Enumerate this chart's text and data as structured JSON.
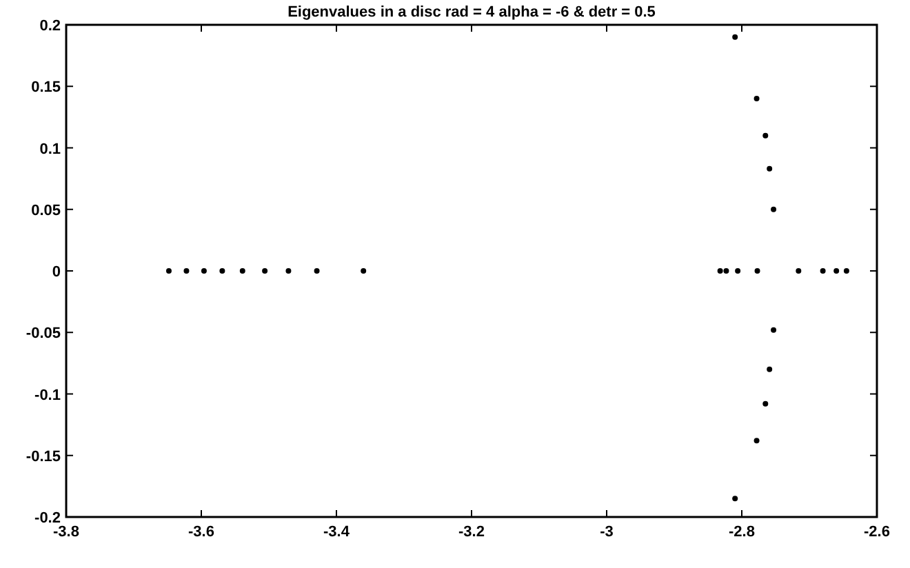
{
  "chart_data": {
    "type": "scatter",
    "title": "Eigenvalues in a disc rad = 4 alpha = -6 & detr = 0.5",
    "x": [
      -3.648,
      -3.622,
      -3.596,
      -3.569,
      -3.539,
      -3.506,
      -3.471,
      -3.429,
      -3.36,
      -2.832,
      -2.823,
      -2.806,
      -2.777,
      -2.716,
      -2.68,
      -2.66,
      -2.645,
      -2.81,
      -2.778,
      -2.765,
      -2.759,
      -2.753,
      -2.753,
      -2.759,
      -2.765,
      -2.778,
      -2.81
    ],
    "values": [
      0,
      0,
      0,
      0,
      0,
      0,
      0,
      0,
      0,
      0,
      0,
      0,
      0,
      0,
      0,
      0,
      0,
      0.19,
      0.14,
      0.11,
      0.083,
      0.05,
      -0.048,
      -0.08,
      -0.108,
      -0.138,
      -0.185
    ],
    "color": "#000000",
    "marker": "circle",
    "xlim": [
      -3.8,
      -2.6
    ],
    "xticks": [
      -3.8,
      -3.6,
      -3.4,
      -3.2,
      -3,
      -2.8,
      -2.6
    ],
    "ylim": [
      -0.2,
      0.2
    ],
    "yticks": [
      -0.2,
      -0.15,
      -0.1,
      -0.05,
      0,
      0.05,
      0.1,
      0.15,
      0.2
    ],
    "grid": false
  }
}
